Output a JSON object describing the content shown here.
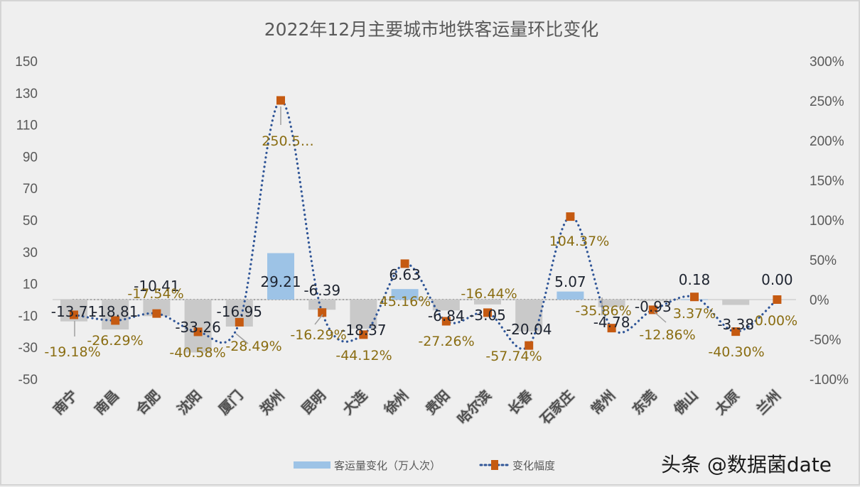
{
  "chart_data": {
    "type": "bar+line",
    "title": "2022年12月主要城市地铁客运量环比变化",
    "categories": [
      "南宁",
      "南昌",
      "合肥",
      "沈阳",
      "厦门",
      "郑州",
      "昆明",
      "大连",
      "徐州",
      "贵阳",
      "哈尔滨",
      "长春",
      "石家庄",
      "常州",
      "东莞",
      "佛山",
      "太原",
      "兰州"
    ],
    "series": [
      {
        "name": "客运量变化（万人次）",
        "type": "bar",
        "axis": "left",
        "values": [
          -13.71,
          -18.81,
          -10.41,
          -33.26,
          -16.95,
          29.21,
          -6.39,
          -18.37,
          6.63,
          -6.84,
          -3.05,
          -20.04,
          5.07,
          -4.78,
          -0.93,
          0.18,
          -3.38,
          0.0
        ],
        "labels": [
          "-13.71",
          "-18.81",
          "-10.41",
          "-33.26",
          "-16.95",
          "29.21",
          "-6.39",
          "-18.37",
          "6.63",
          "-6.84",
          "-3.05",
          "-20.04",
          "5.07",
          "-4.78",
          "-0.93",
          "0.18",
          "-3.38",
          "0.00"
        ]
      },
      {
        "name": "变化幅度",
        "type": "line",
        "axis": "right",
        "values": [
          -19.18,
          -26.29,
          -17.54,
          -40.58,
          -28.49,
          250.5,
          -16.29,
          -44.12,
          45.16,
          -27.26,
          -16.44,
          -57.74,
          104.37,
          -35.86,
          -12.86,
          3.37,
          -40.3,
          0.0
        ],
        "labels": [
          "-19.18%",
          "-26.29%",
          "-17.54%",
          "-40.58%",
          "-28.49%",
          "250.5…",
          "-16.29%",
          "-44.12%",
          "45.16%",
          "-27.26%",
          "-16.44%",
          "-57.74%",
          "104.37%",
          "-35.86%",
          "-12.86%",
          "3.37%",
          "-40.30%",
          "0.00%"
        ]
      }
    ],
    "left_axis": {
      "ticks": [
        "150",
        "130",
        "110",
        "90",
        "70",
        "50",
        "30",
        "10",
        "-10",
        "-30",
        "-50"
      ],
      "ylim": [
        -50,
        150
      ]
    },
    "right_axis": {
      "ticks": [
        "300%",
        "250%",
        "200%",
        "150%",
        "100%",
        "50%",
        "0%",
        "-50%",
        "-100%"
      ],
      "ylim": [
        -100,
        300
      ]
    },
    "grid": false,
    "legend_position": "bottom"
  },
  "legend": {
    "bar_label": "客运量变化（万人次）",
    "line_label": "变化幅度"
  },
  "watermark": "头条 @数据菌date",
  "colors": {
    "positive_bar": "#9dc3e6",
    "negative_bar": "#c9c9c9",
    "line": "#2f5597",
    "marker": "#c55a11",
    "pct_label": "#8a6d12",
    "bar_label": "#1e2430"
  }
}
